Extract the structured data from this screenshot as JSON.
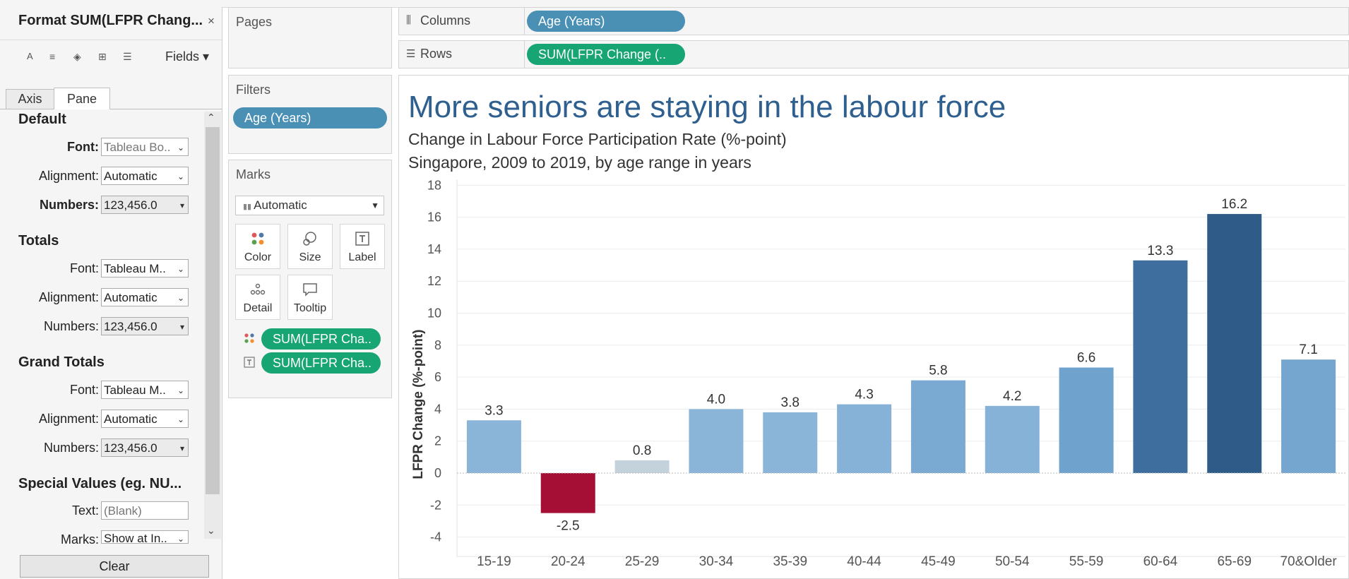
{
  "format_pane": {
    "title": "Format SUM(LFPR Chang...",
    "close": "×",
    "toolbar": {
      "font_tool": "A",
      "align_tool": "≡",
      "shading_tool": "◈",
      "borders_tool": "⊞",
      "lines_tool": "☰",
      "fields_label": "Fields ▾"
    },
    "tabs": [
      "Axis",
      "Pane"
    ],
    "active_tab": "Pane",
    "sections": {
      "default": {
        "heading": "Default",
        "font_label": "Font:",
        "font_value": "Tableau Bo..",
        "align_label": "Alignment:",
        "align_value": "Automatic",
        "numbers_label": "Numbers:",
        "numbers_value": "123,456.0"
      },
      "totals": {
        "heading": "Totals",
        "font_label": "Font:",
        "font_value": "Tableau M..",
        "align_label": "Alignment:",
        "align_value": "Automatic",
        "numbers_label": "Numbers:",
        "numbers_value": "123,456.0"
      },
      "grand_totals": {
        "heading": "Grand Totals",
        "font_label": "Font:",
        "font_value": "Tableau M..",
        "align_label": "Alignment:",
        "align_value": "Automatic",
        "numbers_label": "Numbers:",
        "numbers_value": "123,456.0"
      },
      "special": {
        "heading": "Special Values (eg. NU...",
        "text_label": "Text:",
        "text_placeholder": "(Blank)",
        "marks_label": "Marks:",
        "marks_value": "Show at In.."
      }
    },
    "clear_label": "Clear"
  },
  "pages": {
    "title": "Pages"
  },
  "filters": {
    "title": "Filters",
    "pill": "Age (Years)"
  },
  "marks": {
    "title": "Marks",
    "type": "Automatic",
    "buttons": [
      "Color",
      "Size",
      "Label",
      "Detail",
      "Tooltip"
    ],
    "pills": [
      "SUM(LFPR Cha..",
      "SUM(LFPR Cha.."
    ]
  },
  "shelves": {
    "columns_label": "Columns",
    "columns_pill": "Age (Years)",
    "rows_label": "Rows",
    "rows_pill": "SUM(LFPR Change (.."
  },
  "viz": {
    "title": "More seniors are staying in the labour force",
    "subtitle1": "Change in Labour Force Participation Rate (%-point)",
    "subtitle2": "Singapore, 2009 to 2019, by age range in years"
  },
  "chart_data": {
    "type": "bar",
    "ylabel": "LFPR Change (%-point)",
    "xlabel": "",
    "ylim": [
      -5,
      18
    ],
    "yticks": [
      -4,
      -2,
      0,
      2,
      4,
      6,
      8,
      10,
      12,
      14,
      16,
      18
    ],
    "grid": true,
    "categories": [
      "15-19",
      "20-24",
      "25-29",
      "30-34",
      "35-39",
      "40-44",
      "45-49",
      "50-54",
      "55-59",
      "60-64",
      "65-69",
      "70&Older"
    ],
    "values": [
      3.3,
      -2.5,
      0.8,
      4.0,
      3.8,
      4.3,
      5.8,
      4.2,
      6.6,
      13.3,
      16.2,
      7.1
    ],
    "labels": [
      "3.3",
      "-2.5",
      "0.8",
      "4.0",
      "3.8",
      "4.3",
      "5.8",
      "4.2",
      "6.6",
      "13.3",
      "16.2",
      "7.1"
    ],
    "colors": [
      "#8ab5d9",
      "#a50f35",
      "#c4d2dc",
      "#8ab5d9",
      "#8ab5d9",
      "#87b2d8",
      "#7aaad2",
      "#87b2d8",
      "#6fa2cd",
      "#3e6e9e",
      "#2e5b88",
      "#74a6cf"
    ]
  }
}
